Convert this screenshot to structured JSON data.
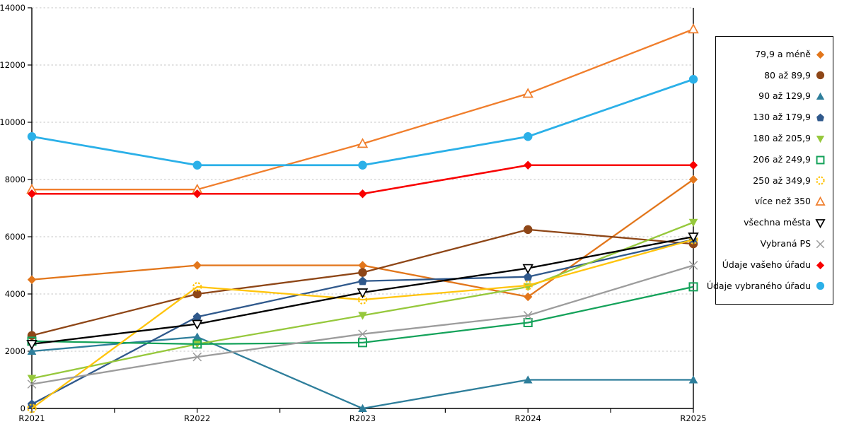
{
  "chart_data": {
    "type": "line",
    "title": "",
    "xlabel": "",
    "ylabel": "",
    "x_categories": [
      "R2021",
      "R2022",
      "R2023",
      "R2024",
      "R2025"
    ],
    "ylim": [
      0,
      14000
    ],
    "ytick_step": 2000,
    "yticks": [
      "0",
      "2000",
      "4000",
      "6000",
      "8000",
      "10000",
      "12000",
      "14000"
    ],
    "grid": "horizontal-dashed",
    "legend_position": "right-outside-box",
    "series": [
      {
        "name": "79,9 a méně",
        "color": "#E2761B",
        "marker": "diamond-filled",
        "values": [
          4500,
          5000,
          5000,
          3900,
          8000
        ]
      },
      {
        "name": "80 až 89,9",
        "color": "#8E4617",
        "marker": "circle-filled",
        "values": [
          2550,
          4000,
          4750,
          6250,
          5750
        ]
      },
      {
        "name": "90 až 129,9",
        "color": "#2E7E9B",
        "marker": "triangle-up-filled",
        "values": [
          2000,
          2500,
          0,
          1000,
          1000
        ]
      },
      {
        "name": "130 až 179,9",
        "color": "#30598C",
        "marker": "pentagon-filled",
        "values": [
          150,
          3200,
          4450,
          4600,
          5900
        ]
      },
      {
        "name": "180 až 205,9",
        "color": "#96C83C",
        "marker": "triangle-down-filled",
        "values": [
          1050,
          2250,
          3250,
          4250,
          6500
        ]
      },
      {
        "name": "206 až 249,9",
        "color": "#14A25A",
        "marker": "square-open",
        "values": [
          2350,
          2250,
          2300,
          3000,
          4250
        ]
      },
      {
        "name": "250 až 349,9",
        "color": "#FFC40C",
        "marker": "circle-open-dashed",
        "values": [
          0,
          4250,
          3800,
          4300,
          5900
        ]
      },
      {
        "name": "více než 350",
        "color": "#F07E2C",
        "marker": "triangle-up-open",
        "values": [
          7650,
          7650,
          9250,
          11000,
          13250
        ]
      },
      {
        "name": "všechna města",
        "color": "#000000",
        "marker": "triangle-down-open",
        "values": [
          2250,
          2950,
          4050,
          4900,
          6000
        ]
      },
      {
        "name": "Vybraná PS",
        "color": "#9C9C9C",
        "marker": "x-cross",
        "values": [
          850,
          1800,
          2600,
          3250,
          5000
        ]
      },
      {
        "name": "Údaje vašeho úřadu",
        "color": "#F80000",
        "marker": "diamond-filled",
        "values": [
          7500,
          7500,
          7500,
          8500,
          8500
        ]
      },
      {
        "name": "Údaje vybraného úřadu",
        "color": "#2BB0E8",
        "marker": "circle-filled",
        "values": [
          9500,
          8500,
          8500,
          9500,
          11500
        ]
      }
    ]
  },
  "colors": {
    "background": "#FFFFFF",
    "grid": "#C6C6C6",
    "axis": "#000000",
    "tick_label": "#000000",
    "legend_border": "#000000"
  }
}
